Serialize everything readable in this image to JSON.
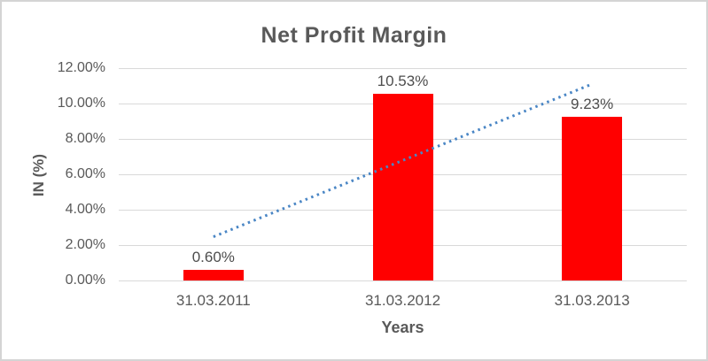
{
  "chart_data": {
    "type": "bar",
    "title": "Net Profit Margin",
    "xlabel": "Years",
    "ylabel": "IN (%)",
    "categories": [
      "31.03.2011",
      "31.03.2012",
      "31.03.2013"
    ],
    "values": [
      0.6,
      10.53,
      9.23
    ],
    "value_labels": [
      "0.60%",
      "10.53%",
      "9.23%"
    ],
    "series_name": "Net Profit Margin",
    "ylim": [
      0,
      12
    ],
    "y_ticks": [
      {
        "label": "12.00%",
        "value": 12
      },
      {
        "label": "10.00%",
        "value": 10
      },
      {
        "label": "8.00%",
        "value": 8
      },
      {
        "label": "6.00%",
        "value": 6
      },
      {
        "label": "4.00%",
        "value": 4
      },
      {
        "label": "2.00%",
        "value": 2
      },
      {
        "label": "0.00%",
        "value": 0
      }
    ],
    "grid": true,
    "legend": "none",
    "bar_color": "#ff0000",
    "trendline": {
      "type": "linear",
      "style": "dotted",
      "color": "#4a86c5",
      "from_value": 2.47,
      "to_value": 11.1
    }
  },
  "colors": {
    "title_text": "#595959",
    "axis_text": "#595959",
    "data_label_text": "#4d4d4d",
    "gridline": "#d9d9d9",
    "frame_border": "#d4d4d4",
    "background": "#ffffff"
  }
}
